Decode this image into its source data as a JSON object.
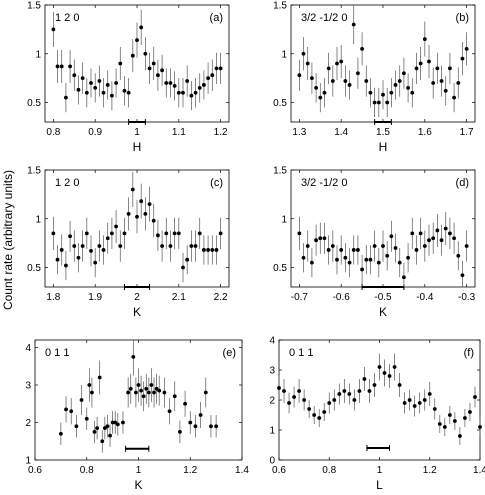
{
  "ylabel": "Count rate (arbitrary units)",
  "chart_data": [
    {
      "id": "a",
      "type": "scatter",
      "panel_label": "(a)",
      "annotation": "1 2 0",
      "xlabel": "H",
      "xlim": [
        0.78,
        1.22
      ],
      "ylim": [
        0.3,
        1.5
      ],
      "xticks": [
        0.8,
        0.9,
        1.0,
        1.1,
        1.2
      ],
      "xticklabels": [
        "0.8",
        "0.9",
        "1",
        "1.1",
        "1.2"
      ],
      "yticks": [
        0.5,
        1.0,
        1.5
      ],
      "yticklabels": [
        "0.5",
        "1",
        "1.5"
      ],
      "resolution_bar": [
        0.98,
        1.02
      ],
      "resolution_bar_y": 0.3,
      "x": [
        0.8,
        0.81,
        0.82,
        0.83,
        0.84,
        0.85,
        0.86,
        0.87,
        0.88,
        0.89,
        0.9,
        0.91,
        0.92,
        0.93,
        0.94,
        0.95,
        0.96,
        0.97,
        0.98,
        0.99,
        1.0,
        1.01,
        1.02,
        1.03,
        1.04,
        1.05,
        1.06,
        1.07,
        1.08,
        1.09,
        1.1,
        1.11,
        1.12,
        1.13,
        1.14,
        1.15,
        1.16,
        1.17,
        1.18,
        1.19,
        1.2
      ],
      "y": [
        1.25,
        0.87,
        0.87,
        0.55,
        0.87,
        0.78,
        0.63,
        0.75,
        0.6,
        0.7,
        0.65,
        0.72,
        0.6,
        0.68,
        0.57,
        0.7,
        0.9,
        0.62,
        0.6,
        0.98,
        1.14,
        1.27,
        1.0,
        0.85,
        0.9,
        0.78,
        0.83,
        0.7,
        0.7,
        0.67,
        0.6,
        0.6,
        0.72,
        0.57,
        0.6,
        0.65,
        0.68,
        0.75,
        0.78,
        0.85,
        0.85
      ],
      "yerr": [
        0.18,
        0.17,
        0.17,
        0.15,
        0.17,
        0.16,
        0.15,
        0.16,
        0.15,
        0.15,
        0.15,
        0.16,
        0.15,
        0.15,
        0.15,
        0.15,
        0.17,
        0.15,
        0.15,
        0.17,
        0.18,
        0.18,
        0.17,
        0.16,
        0.17,
        0.16,
        0.16,
        0.15,
        0.15,
        0.15,
        0.15,
        0.15,
        0.16,
        0.15,
        0.15,
        0.15,
        0.15,
        0.16,
        0.16,
        0.16,
        0.16
      ]
    },
    {
      "id": "b",
      "type": "scatter",
      "panel_label": "(b)",
      "annotation": "3/2 -1/2 0",
      "xlabel": "H",
      "xlim": [
        1.28,
        1.72
      ],
      "ylim": [
        0.3,
        1.5
      ],
      "xticks": [
        1.3,
        1.4,
        1.5,
        1.6,
        1.7
      ],
      "xticklabels": [
        "1.3",
        "1.4",
        "1.5",
        "1.6",
        "1.7"
      ],
      "yticks": [
        0.5,
        1.0,
        1.5
      ],
      "yticklabels": [
        "0.5",
        "1",
        "1.5"
      ],
      "resolution_bar": [
        1.48,
        1.52
      ],
      "resolution_bar_y": 0.3,
      "x": [
        1.3,
        1.31,
        1.32,
        1.33,
        1.34,
        1.35,
        1.36,
        1.37,
        1.38,
        1.39,
        1.4,
        1.41,
        1.42,
        1.43,
        1.44,
        1.45,
        1.46,
        1.47,
        1.48,
        1.49,
        1.5,
        1.51,
        1.52,
        1.53,
        1.54,
        1.55,
        1.56,
        1.57,
        1.58,
        1.59,
        1.6,
        1.61,
        1.62,
        1.63,
        1.64,
        1.65,
        1.66,
        1.67,
        1.68,
        1.69,
        1.7
      ],
      "y": [
        0.78,
        1.0,
        0.9,
        0.75,
        0.65,
        0.55,
        0.6,
        0.85,
        0.72,
        0.9,
        0.92,
        0.72,
        0.68,
        1.3,
        0.8,
        1.05,
        0.72,
        0.6,
        0.5,
        0.5,
        0.58,
        0.5,
        0.6,
        0.68,
        0.72,
        0.8,
        0.65,
        0.6,
        0.85,
        0.9,
        1.15,
        0.92,
        0.7,
        0.85,
        0.72,
        0.62,
        0.85,
        0.55,
        0.7,
        0.95,
        1.05
      ],
      "yerr": [
        0.16,
        0.17,
        0.17,
        0.16,
        0.15,
        0.15,
        0.15,
        0.16,
        0.16,
        0.17,
        0.17,
        0.16,
        0.15,
        0.2,
        0.16,
        0.17,
        0.16,
        0.15,
        0.15,
        0.15,
        0.15,
        0.15,
        0.15,
        0.15,
        0.16,
        0.16,
        0.15,
        0.15,
        0.16,
        0.17,
        0.18,
        0.17,
        0.16,
        0.16,
        0.16,
        0.15,
        0.16,
        0.15,
        0.16,
        0.17,
        0.17
      ]
    },
    {
      "id": "c",
      "type": "scatter",
      "panel_label": "(c)",
      "annotation": "1 2 0",
      "xlabel": "K",
      "xlim": [
        1.78,
        2.22
      ],
      "ylim": [
        0.3,
        1.5
      ],
      "xticks": [
        1.8,
        1.9,
        2.0,
        2.1,
        2.2
      ],
      "xticklabels": [
        "1.8",
        "1.9",
        "2",
        "2.1",
        "2.2"
      ],
      "yticks": [
        0.5,
        1.0,
        1.5
      ],
      "yticklabels": [
        "0.5",
        "1",
        "1.5"
      ],
      "resolution_bar": [
        1.97,
        2.03
      ],
      "resolution_bar_y": 0.3,
      "x": [
        1.8,
        1.81,
        1.82,
        1.83,
        1.84,
        1.85,
        1.86,
        1.87,
        1.88,
        1.89,
        1.9,
        1.91,
        1.92,
        1.93,
        1.94,
        1.95,
        1.96,
        1.97,
        1.98,
        1.99,
        2.0,
        2.01,
        2.02,
        2.03,
        2.04,
        2.05,
        2.06,
        2.07,
        2.08,
        2.09,
        2.1,
        2.11,
        2.12,
        2.13,
        2.14,
        2.15,
        2.16,
        2.17,
        2.18,
        2.19,
        2.2
      ],
      "y": [
        0.85,
        0.58,
        0.68,
        0.52,
        0.82,
        0.72,
        0.6,
        0.72,
        0.85,
        0.67,
        0.55,
        0.72,
        0.68,
        0.8,
        0.85,
        0.92,
        0.72,
        0.85,
        1.05,
        1.3,
        1.02,
        1.18,
        1.05,
        1.15,
        0.98,
        0.83,
        0.72,
        0.85,
        0.72,
        0.85,
        0.85,
        0.5,
        0.58,
        0.72,
        0.72,
        0.85,
        0.68,
        0.68,
        0.68,
        0.68,
        0.85
      ],
      "yerr": [
        0.17,
        0.15,
        0.16,
        0.15,
        0.16,
        0.16,
        0.15,
        0.16,
        0.16,
        0.16,
        0.15,
        0.16,
        0.15,
        0.16,
        0.16,
        0.17,
        0.16,
        0.16,
        0.17,
        0.18,
        0.17,
        0.18,
        0.17,
        0.18,
        0.17,
        0.16,
        0.16,
        0.16,
        0.16,
        0.16,
        0.16,
        0.15,
        0.15,
        0.16,
        0.16,
        0.16,
        0.15,
        0.15,
        0.15,
        0.15,
        0.16
      ]
    },
    {
      "id": "d",
      "type": "scatter",
      "panel_label": "(d)",
      "annotation": "3/2 -1/2 0",
      "xlabel": "K",
      "xlim": [
        -0.72,
        -0.28
      ],
      "ylim": [
        0.3,
        1.5
      ],
      "xticks": [
        -0.7,
        -0.6,
        -0.5,
        -0.4,
        -0.3
      ],
      "xticklabels": [
        "-0.7",
        "-0.6",
        "-0.5",
        "-0.4",
        "-0.3"
      ],
      "yticks": [
        0.5,
        1.0,
        1.5
      ],
      "yticklabels": [
        "0.5",
        "1",
        "1.5"
      ],
      "resolution_bar": [
        -0.55,
        -0.45
      ],
      "resolution_bar_y": 0.3,
      "x": [
        -0.7,
        -0.69,
        -0.68,
        -0.67,
        -0.66,
        -0.65,
        -0.64,
        -0.63,
        -0.62,
        -0.61,
        -0.6,
        -0.59,
        -0.58,
        -0.57,
        -0.56,
        -0.55,
        -0.54,
        -0.53,
        -0.52,
        -0.51,
        -0.5,
        -0.49,
        -0.48,
        -0.47,
        -0.46,
        -0.45,
        -0.44,
        -0.43,
        -0.42,
        -0.41,
        -0.4,
        -0.39,
        -0.38,
        -0.37,
        -0.36,
        -0.35,
        -0.34,
        -0.33,
        -0.32,
        -0.31,
        -0.3
      ],
      "y": [
        0.85,
        0.6,
        0.72,
        0.55,
        0.78,
        0.8,
        0.8,
        0.68,
        0.72,
        0.58,
        0.68,
        0.6,
        0.55,
        0.68,
        0.68,
        0.48,
        0.58,
        0.58,
        0.72,
        0.55,
        0.72,
        0.62,
        0.82,
        0.7,
        0.55,
        0.4,
        0.6,
        0.85,
        0.68,
        0.85,
        0.72,
        0.78,
        0.8,
        0.88,
        0.78,
        0.9,
        0.85,
        0.8,
        0.62,
        0.42,
        0.72
      ],
      "yerr": [
        0.17,
        0.15,
        0.16,
        0.15,
        0.16,
        0.16,
        0.16,
        0.15,
        0.16,
        0.15,
        0.15,
        0.15,
        0.15,
        0.15,
        0.15,
        0.15,
        0.15,
        0.15,
        0.16,
        0.15,
        0.16,
        0.15,
        0.16,
        0.15,
        0.15,
        0.15,
        0.15,
        0.16,
        0.15,
        0.16,
        0.16,
        0.16,
        0.16,
        0.17,
        0.16,
        0.17,
        0.16,
        0.16,
        0.15,
        0.15,
        0.16
      ]
    },
    {
      "id": "e",
      "type": "scatter",
      "panel_label": "(e)",
      "annotation": "0 1 1",
      "xlabel": "K",
      "xlim": [
        0.6,
        1.4
      ],
      "ylim": [
        1.0,
        4.2
      ],
      "xticks": [
        0.6,
        0.8,
        1.0,
        1.2,
        1.4
      ],
      "xticklabels": [
        "0.6",
        "0.8",
        "1",
        "1.2",
        "1.4"
      ],
      "yticks": [
        1,
        2,
        3,
        4
      ],
      "yticklabels": [
        "1",
        "2",
        "3",
        "4"
      ],
      "resolution_bar": [
        0.95,
        1.04
      ],
      "resolution_bar_y": 1.3,
      "x": [
        0.7,
        0.72,
        0.74,
        0.76,
        0.78,
        0.8,
        0.81,
        0.82,
        0.83,
        0.84,
        0.85,
        0.86,
        0.87,
        0.88,
        0.89,
        0.9,
        0.91,
        0.92,
        0.94,
        0.96,
        0.97,
        0.98,
        0.99,
        1.0,
        1.01,
        1.02,
        1.03,
        1.04,
        1.05,
        1.06,
        1.07,
        1.08,
        1.1,
        1.12,
        1.14,
        1.16,
        1.18,
        1.2,
        1.22,
        1.24,
        1.26,
        1.28,
        1.3
      ],
      "y": [
        1.7,
        2.35,
        2.3,
        1.9,
        2.6,
        2.1,
        3.0,
        2.8,
        1.75,
        1.85,
        3.2,
        1.5,
        1.85,
        1.9,
        1.65,
        2.0,
        2.0,
        1.95,
        2.0,
        2.8,
        2.9,
        3.75,
        2.8,
        3.0,
        2.85,
        2.7,
        2.9,
        2.8,
        3.0,
        2.8,
        2.9,
        2.85,
        2.8,
        2.3,
        2.7,
        1.75,
        2.5,
        2.0,
        1.9,
        2.2,
        2.8,
        1.9,
        1.9
      ],
      "yerr": [
        0.3,
        0.35,
        0.35,
        0.3,
        0.4,
        0.3,
        0.45,
        0.4,
        0.3,
        0.3,
        0.45,
        0.3,
        0.3,
        0.3,
        0.3,
        0.3,
        0.3,
        0.3,
        0.3,
        0.4,
        0.4,
        0.5,
        0.4,
        0.45,
        0.4,
        0.4,
        0.4,
        0.4,
        0.45,
        0.4,
        0.4,
        0.4,
        0.4,
        0.35,
        0.4,
        0.3,
        0.35,
        0.3,
        0.3,
        0.35,
        0.4,
        0.3,
        0.3
      ]
    },
    {
      "id": "f",
      "type": "scatter",
      "panel_label": "(f)",
      "annotation": "0 1 1",
      "xlabel": "L",
      "xlim": [
        0.6,
        1.4
      ],
      "ylim": [
        0.0,
        4.0
      ],
      "xticks": [
        0.6,
        0.8,
        1.0,
        1.2,
        1.4
      ],
      "xticklabels": [
        "0.6",
        "0.8",
        "1",
        "1.2",
        "1.4"
      ],
      "yticks": [
        0,
        1,
        2,
        3,
        4
      ],
      "yticklabels": [
        "0",
        "1",
        "2",
        "3",
        "4"
      ],
      "resolution_bar": [
        0.95,
        1.04
      ],
      "resolution_bar_y": 0.4,
      "x": [
        0.6,
        0.62,
        0.64,
        0.66,
        0.68,
        0.7,
        0.72,
        0.74,
        0.76,
        0.78,
        0.8,
        0.82,
        0.84,
        0.86,
        0.88,
        0.9,
        0.92,
        0.94,
        0.96,
        0.98,
        1.0,
        1.02,
        1.04,
        1.06,
        1.08,
        1.1,
        1.12,
        1.14,
        1.16,
        1.18,
        1.2,
        1.22,
        1.24,
        1.26,
        1.28,
        1.3,
        1.32,
        1.34,
        1.36,
        1.38,
        1.4
      ],
      "y": [
        2.4,
        2.3,
        1.9,
        2.1,
        2.3,
        2.0,
        1.7,
        1.5,
        1.4,
        1.6,
        1.9,
        2.0,
        2.2,
        2.3,
        2.2,
        2.0,
        2.3,
        2.7,
        2.3,
        2.5,
        3.1,
        2.9,
        2.8,
        3.1,
        2.5,
        1.9,
        2.0,
        1.8,
        1.9,
        2.0,
        2.2,
        1.7,
        1.2,
        1.1,
        1.5,
        1.3,
        0.8,
        1.4,
        1.6,
        2.1,
        1.1
      ],
      "yerr": [
        0.4,
        0.4,
        0.35,
        0.35,
        0.4,
        0.35,
        0.3,
        0.3,
        0.3,
        0.3,
        0.35,
        0.35,
        0.35,
        0.4,
        0.35,
        0.35,
        0.4,
        0.4,
        0.4,
        0.4,
        0.45,
        0.45,
        0.4,
        0.45,
        0.4,
        0.35,
        0.35,
        0.35,
        0.35,
        0.35,
        0.4,
        0.35,
        0.3,
        0.3,
        0.3,
        0.3,
        0.3,
        0.3,
        0.3,
        0.35,
        0.3
      ]
    }
  ]
}
